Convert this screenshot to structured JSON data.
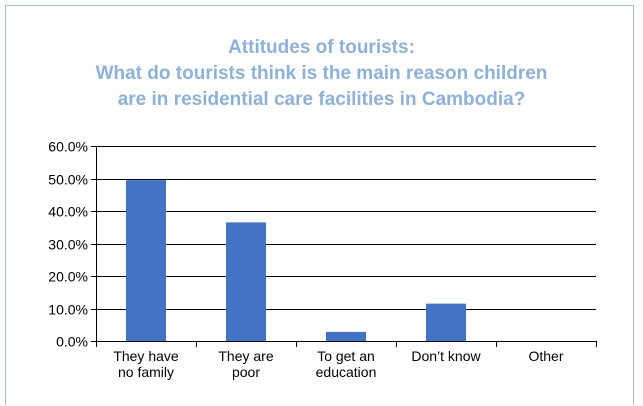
{
  "chart_data": {
    "type": "bar",
    "title": [
      "Attitudes of tourists:",
      "What do tourists think is the main reason children",
      "are in residential care facilities in Cambodia?"
    ],
    "categories": [
      [
        "They have",
        "no family"
      ],
      [
        "They are",
        "poor"
      ],
      [
        "To get an",
        "education"
      ],
      [
        "Don’t know"
      ],
      [
        "Other"
      ]
    ],
    "values": [
      49.5,
      36.5,
      2.8,
      11.5,
      0.0
    ],
    "ylim": [
      0,
      60
    ],
    "yticks": [
      "0.0%",
      "10.0%",
      "20.0%",
      "30.0%",
      "40.0%",
      "50.0%",
      "60.0%"
    ],
    "ytick_values": [
      0,
      10,
      20,
      30,
      40,
      50,
      60
    ],
    "xlabel": "",
    "ylabel": "",
    "grid": true,
    "bar_color": "#4472c4",
    "title_color": "#8eb1d8"
  }
}
